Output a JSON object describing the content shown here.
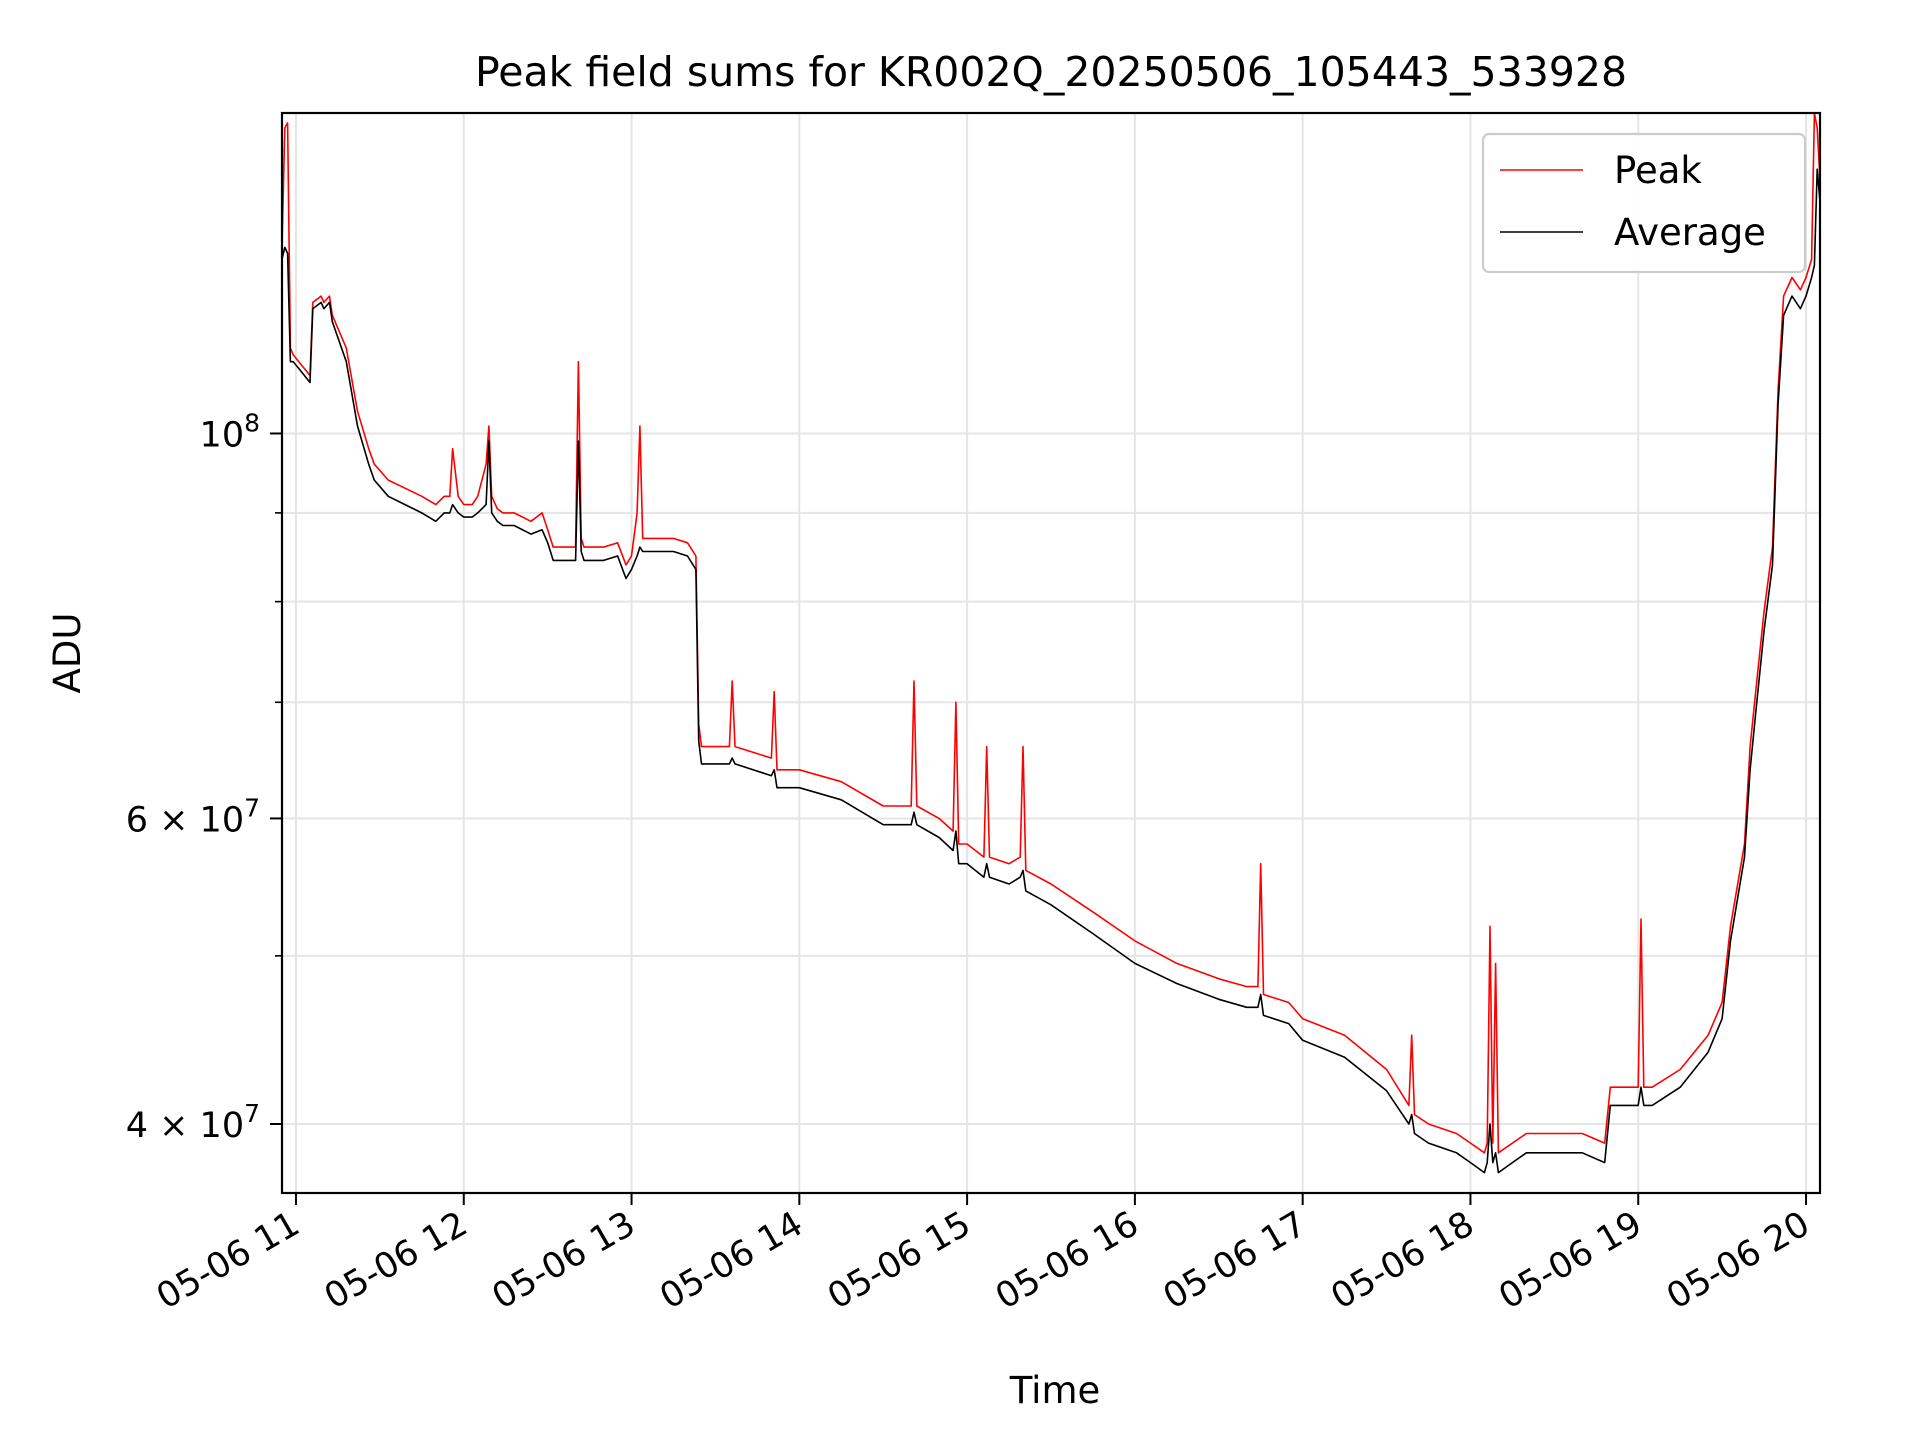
{
  "chart_data": {
    "type": "line",
    "title": "Peak field sums for KR002Q_20250506_105443_533928",
    "xlabel": "Time",
    "ylabel": "ADU",
    "y_scale": "log",
    "xlim": [
      "2025-05-06 10:55",
      "2025-05-06 20:05"
    ],
    "ylim": [
      36500000,
      153000000
    ],
    "grid": true,
    "legend_position": "upper right",
    "x_ticks": [
      {
        "label": "05-06 11",
        "value": "2025-05-06 11:00"
      },
      {
        "label": "05-06 12",
        "value": "2025-05-06 12:00"
      },
      {
        "label": "05-06 13",
        "value": "2025-05-06 13:00"
      },
      {
        "label": "05-06 14",
        "value": "2025-05-06 14:00"
      },
      {
        "label": "05-06 15",
        "value": "2025-05-06 15:00"
      },
      {
        "label": "05-06 16",
        "value": "2025-05-06 16:00"
      },
      {
        "label": "05-06 17",
        "value": "2025-05-06 17:00"
      },
      {
        "label": "05-06 18",
        "value": "2025-05-06 18:00"
      },
      {
        "label": "05-06 19",
        "value": "2025-05-06 19:00"
      },
      {
        "label": "05-06 20",
        "value": "2025-05-06 20:00"
      }
    ],
    "y_major_ticks": [
      {
        "base": "10",
        "exp": "8",
        "mult": "",
        "value": 100000000
      },
      {
        "base": "10",
        "exp": "7",
        "mult": "6 × ",
        "value": 60000000
      },
      {
        "base": "10",
        "exp": "7",
        "mult": "4 × ",
        "value": 40000000
      }
    ],
    "y_minor_ticks": [
      50000000,
      70000000,
      80000000,
      90000000
    ],
    "series": [
      {
        "name": "Peak",
        "color": "#ff0000",
        "x": [
          "2025-05-06 10:55",
          "2025-05-06 10:56",
          "2025-05-06 10:57",
          "2025-05-06 10:58",
          "2025-05-06 10:59",
          "2025-05-06 11:01",
          "2025-05-06 11:05",
          "2025-05-06 11:06",
          "2025-05-06 11:09",
          "2025-05-06 11:10",
          "2025-05-06 11:12",
          "2025-05-06 11:13",
          "2025-05-06 11:18",
          "2025-05-06 11:22",
          "2025-05-06 11:26",
          "2025-05-06 11:28",
          "2025-05-06 11:33",
          "2025-05-06 11:39",
          "2025-05-06 11:45",
          "2025-05-06 11:50",
          "2025-05-06 11:53",
          "2025-05-06 11:55",
          "2025-05-06 11:56",
          "2025-05-06 11:58",
          "2025-05-06 12:00",
          "2025-05-06 12:03",
          "2025-05-06 12:05",
          "2025-05-06 12:08",
          "2025-05-06 12:09",
          "2025-05-06 12:10",
          "2025-05-06 12:12",
          "2025-05-06 12:14",
          "2025-05-06 12:18",
          "2025-05-06 12:24",
          "2025-05-06 12:28",
          "2025-05-06 12:30",
          "2025-05-06 12:32",
          "2025-05-06 12:40",
          "2025-05-06 12:41",
          "2025-05-06 12:42",
          "2025-05-06 12:43",
          "2025-05-06 12:50",
          "2025-05-06 12:55",
          "2025-05-06 12:58",
          "2025-05-06 13:00",
          "2025-05-06 13:02",
          "2025-05-06 13:03",
          "2025-05-06 13:04",
          "2025-05-06 13:06",
          "2025-05-06 13:10",
          "2025-05-06 13:15",
          "2025-05-06 13:20",
          "2025-05-06 13:23",
          "2025-05-06 13:24",
          "2025-05-06 13:25",
          "2025-05-06 13:30",
          "2025-05-06 13:35",
          "2025-05-06 13:36",
          "2025-05-06 13:37",
          "2025-05-06 13:50",
          "2025-05-06 13:51",
          "2025-05-06 13:52",
          "2025-05-06 14:00",
          "2025-05-06 14:15",
          "2025-05-06 14:30",
          "2025-05-06 14:40",
          "2025-05-06 14:41",
          "2025-05-06 14:42",
          "2025-05-06 14:50",
          "2025-05-06 14:55",
          "2025-05-06 14:56",
          "2025-05-06 14:57",
          "2025-05-06 15:00",
          "2025-05-06 15:06",
          "2025-05-06 15:07",
          "2025-05-06 15:08",
          "2025-05-06 15:15",
          "2025-05-06 15:19",
          "2025-05-06 15:20",
          "2025-05-06 15:21",
          "2025-05-06 15:30",
          "2025-05-06 15:45",
          "2025-05-06 16:00",
          "2025-05-06 16:15",
          "2025-05-06 16:30",
          "2025-05-06 16:40",
          "2025-05-06 16:44",
          "2025-05-06 16:45",
          "2025-05-06 16:46",
          "2025-05-06 16:55",
          "2025-05-06 17:00",
          "2025-05-06 17:15",
          "2025-05-06 17:30",
          "2025-05-06 17:38",
          "2025-05-06 17:39",
          "2025-05-06 17:40",
          "2025-05-06 17:45",
          "2025-05-06 17:55",
          "2025-05-06 18:00",
          "2025-05-06 18:05",
          "2025-05-06 18:06",
          "2025-05-06 18:07",
          "2025-05-06 18:08",
          "2025-05-06 18:09",
          "2025-05-06 18:10",
          "2025-05-06 18:15",
          "2025-05-06 18:20",
          "2025-05-06 18:30",
          "2025-05-06 18:40",
          "2025-05-06 18:48",
          "2025-05-06 18:50",
          "2025-05-06 19:00",
          "2025-05-06 19:01",
          "2025-05-06 19:02",
          "2025-05-06 19:05",
          "2025-05-06 19:15",
          "2025-05-06 19:25",
          "2025-05-06 19:30",
          "2025-05-06 19:33",
          "2025-05-06 19:38",
          "2025-05-06 19:40",
          "2025-05-06 19:42",
          "2025-05-06 19:45",
          "2025-05-06 19:48",
          "2025-05-06 19:50",
          "2025-05-06 19:52",
          "2025-05-06 19:55",
          "2025-05-06 19:58",
          "2025-05-06 20:00",
          "2025-05-06 20:02",
          "2025-05-06 20:03",
          "2025-05-06 20:04",
          "2025-05-06 20:05"
        ],
        "values": [
          128000000,
          150000000,
          151000000,
          112000000,
          111000000,
          110000000,
          108000000,
          119000000,
          120000000,
          119000000,
          120000000,
          117000000,
          112000000,
          103000000,
          98000000,
          96000000,
          94000000,
          93000000,
          92000000,
          91000000,
          92000000,
          92000000,
          98000000,
          92000000,
          91000000,
          91000000,
          92000000,
          96000000,
          101000000,
          92000000,
          90500000,
          90000000,
          90000000,
          89000000,
          90000000,
          88000000,
          86000000,
          86000000,
          110000000,
          87000000,
          86000000,
          86000000,
          86500000,
          84000000,
          85000000,
          90000000,
          101000000,
          87000000,
          87000000,
          87000000,
          87000000,
          86500000,
          85000000,
          68000000,
          66000000,
          66000000,
          66000000,
          72000000,
          66000000,
          65000000,
          71000000,
          64000000,
          64000000,
          63000000,
          61000000,
          61000000,
          72000000,
          61000000,
          60000000,
          59000000,
          70000000,
          58000000,
          58000000,
          57000000,
          66000000,
          57000000,
          56500000,
          57000000,
          66000000,
          56000000,
          55000000,
          53000000,
          51000000,
          49500000,
          48500000,
          48000000,
          48000000,
          56500000,
          47500000,
          47000000,
          46000000,
          45000000,
          43000000,
          41000000,
          45000000,
          40500000,
          40000000,
          39500000,
          39000000,
          38500000,
          39000000,
          52000000,
          39000000,
          49500000,
          38500000,
          39000000,
          39500000,
          39500000,
          39500000,
          39000000,
          42000000,
          42000000,
          52500000,
          42000000,
          42000000,
          43000000,
          45000000,
          47000000,
          52000000,
          58000000,
          66000000,
          71000000,
          79000000,
          86000000,
          106000000,
          120000000,
          123000000,
          121000000,
          123000000,
          126000000,
          153000000,
          150000000,
          140000000
        ]
      },
      {
        "name": "Average",
        "color": "#000000",
        "x": [
          "2025-05-06 10:55",
          "2025-05-06 10:56",
          "2025-05-06 10:57",
          "2025-05-06 10:58",
          "2025-05-06 10:59",
          "2025-05-06 11:01",
          "2025-05-06 11:05",
          "2025-05-06 11:06",
          "2025-05-06 11:09",
          "2025-05-06 11:10",
          "2025-05-06 11:12",
          "2025-05-06 11:13",
          "2025-05-06 11:18",
          "2025-05-06 11:22",
          "2025-05-06 11:26",
          "2025-05-06 11:28",
          "2025-05-06 11:33",
          "2025-05-06 11:39",
          "2025-05-06 11:45",
          "2025-05-06 11:50",
          "2025-05-06 11:53",
          "2025-05-06 11:55",
          "2025-05-06 11:56",
          "2025-05-06 11:58",
          "2025-05-06 12:00",
          "2025-05-06 12:03",
          "2025-05-06 12:05",
          "2025-05-06 12:08",
          "2025-05-06 12:09",
          "2025-05-06 12:10",
          "2025-05-06 12:12",
          "2025-05-06 12:14",
          "2025-05-06 12:18",
          "2025-05-06 12:24",
          "2025-05-06 12:28",
          "2025-05-06 12:30",
          "2025-05-06 12:32",
          "2025-05-06 12:40",
          "2025-05-06 12:41",
          "2025-05-06 12:42",
          "2025-05-06 12:43",
          "2025-05-06 12:50",
          "2025-05-06 12:55",
          "2025-05-06 12:58",
          "2025-05-06 13:00",
          "2025-05-06 13:02",
          "2025-05-06 13:03",
          "2025-05-06 13:04",
          "2025-05-06 13:06",
          "2025-05-06 13:10",
          "2025-05-06 13:15",
          "2025-05-06 13:20",
          "2025-05-06 13:23",
          "2025-05-06 13:24",
          "2025-05-06 13:25",
          "2025-05-06 13:30",
          "2025-05-06 13:35",
          "2025-05-06 13:36",
          "2025-05-06 13:37",
          "2025-05-06 13:50",
          "2025-05-06 13:51",
          "2025-05-06 13:52",
          "2025-05-06 14:00",
          "2025-05-06 14:15",
          "2025-05-06 14:30",
          "2025-05-06 14:40",
          "2025-05-06 14:41",
          "2025-05-06 14:42",
          "2025-05-06 14:50",
          "2025-05-06 14:55",
          "2025-05-06 14:56",
          "2025-05-06 14:57",
          "2025-05-06 15:00",
          "2025-05-06 15:06",
          "2025-05-06 15:07",
          "2025-05-06 15:08",
          "2025-05-06 15:15",
          "2025-05-06 15:19",
          "2025-05-06 15:20",
          "2025-05-06 15:21",
          "2025-05-06 15:30",
          "2025-05-06 15:45",
          "2025-05-06 16:00",
          "2025-05-06 16:15",
          "2025-05-06 16:30",
          "2025-05-06 16:40",
          "2025-05-06 16:44",
          "2025-05-06 16:45",
          "2025-05-06 16:46",
          "2025-05-06 16:55",
          "2025-05-06 17:00",
          "2025-05-06 17:15",
          "2025-05-06 17:30",
          "2025-05-06 17:38",
          "2025-05-06 17:39",
          "2025-05-06 17:40",
          "2025-05-06 17:45",
          "2025-05-06 17:55",
          "2025-05-06 18:00",
          "2025-05-06 18:05",
          "2025-05-06 18:06",
          "2025-05-06 18:07",
          "2025-05-06 18:08",
          "2025-05-06 18:09",
          "2025-05-06 18:10",
          "2025-05-06 18:15",
          "2025-05-06 18:20",
          "2025-05-06 18:30",
          "2025-05-06 18:40",
          "2025-05-06 18:48",
          "2025-05-06 18:50",
          "2025-05-06 19:00",
          "2025-05-06 19:01",
          "2025-05-06 19:02",
          "2025-05-06 19:05",
          "2025-05-06 19:15",
          "2025-05-06 19:25",
          "2025-05-06 19:30",
          "2025-05-06 19:33",
          "2025-05-06 19:38",
          "2025-05-06 19:40",
          "2025-05-06 19:42",
          "2025-05-06 19:45",
          "2025-05-06 19:48",
          "2025-05-06 19:50",
          "2025-05-06 19:52",
          "2025-05-06 19:55",
          "2025-05-06 19:58",
          "2025-05-06 20:00",
          "2025-05-06 20:02",
          "2025-05-06 20:03",
          "2025-05-06 20:04",
          "2025-05-06 20:05"
        ],
        "values": [
          126000000,
          128000000,
          127000000,
          110000000,
          110000000,
          109000000,
          107000000,
          118000000,
          119000000,
          118000000,
          119000000,
          116000000,
          110000000,
          101000000,
          96000000,
          94000000,
          92000000,
          91000000,
          90000000,
          89000000,
          90000000,
          90000000,
          91000000,
          90000000,
          89500000,
          89500000,
          90000000,
          91000000,
          99000000,
          90000000,
          89000000,
          88500000,
          88500000,
          87500000,
          88000000,
          86500000,
          84500000,
          84500000,
          99000000,
          85500000,
          84500000,
          84500000,
          85000000,
          82500000,
          83500000,
          85000000,
          86000000,
          85500000,
          85500000,
          85500000,
          85500000,
          85000000,
          83500000,
          66500000,
          64500000,
          64500000,
          64500000,
          65000000,
          64500000,
          63500000,
          64000000,
          62500000,
          62500000,
          61500000,
          59500000,
          59500000,
          60500000,
          59500000,
          58500000,
          57500000,
          59000000,
          56500000,
          56500000,
          55500000,
          56500000,
          55500000,
          55000000,
          55500000,
          56000000,
          54500000,
          53500000,
          51500000,
          49500000,
          48200000,
          47200000,
          46700000,
          46700000,
          47500000,
          46200000,
          45700000,
          44700000,
          43700000,
          41800000,
          40000000,
          40500000,
          39500000,
          39000000,
          38500000,
          38000000,
          37500000,
          38000000,
          40000000,
          38000000,
          38500000,
          37500000,
          38000000,
          38500000,
          38500000,
          38500000,
          38000000,
          41000000,
          41000000,
          42000000,
          41000000,
          41000000,
          42000000,
          44000000,
          46000000,
          51000000,
          57000000,
          64000000,
          69000000,
          77000000,
          84000000,
          104000000,
          117000000,
          120000000,
          118000000,
          120000000,
          123000000,
          125000000,
          142000000,
          136000000
        ]
      }
    ]
  }
}
